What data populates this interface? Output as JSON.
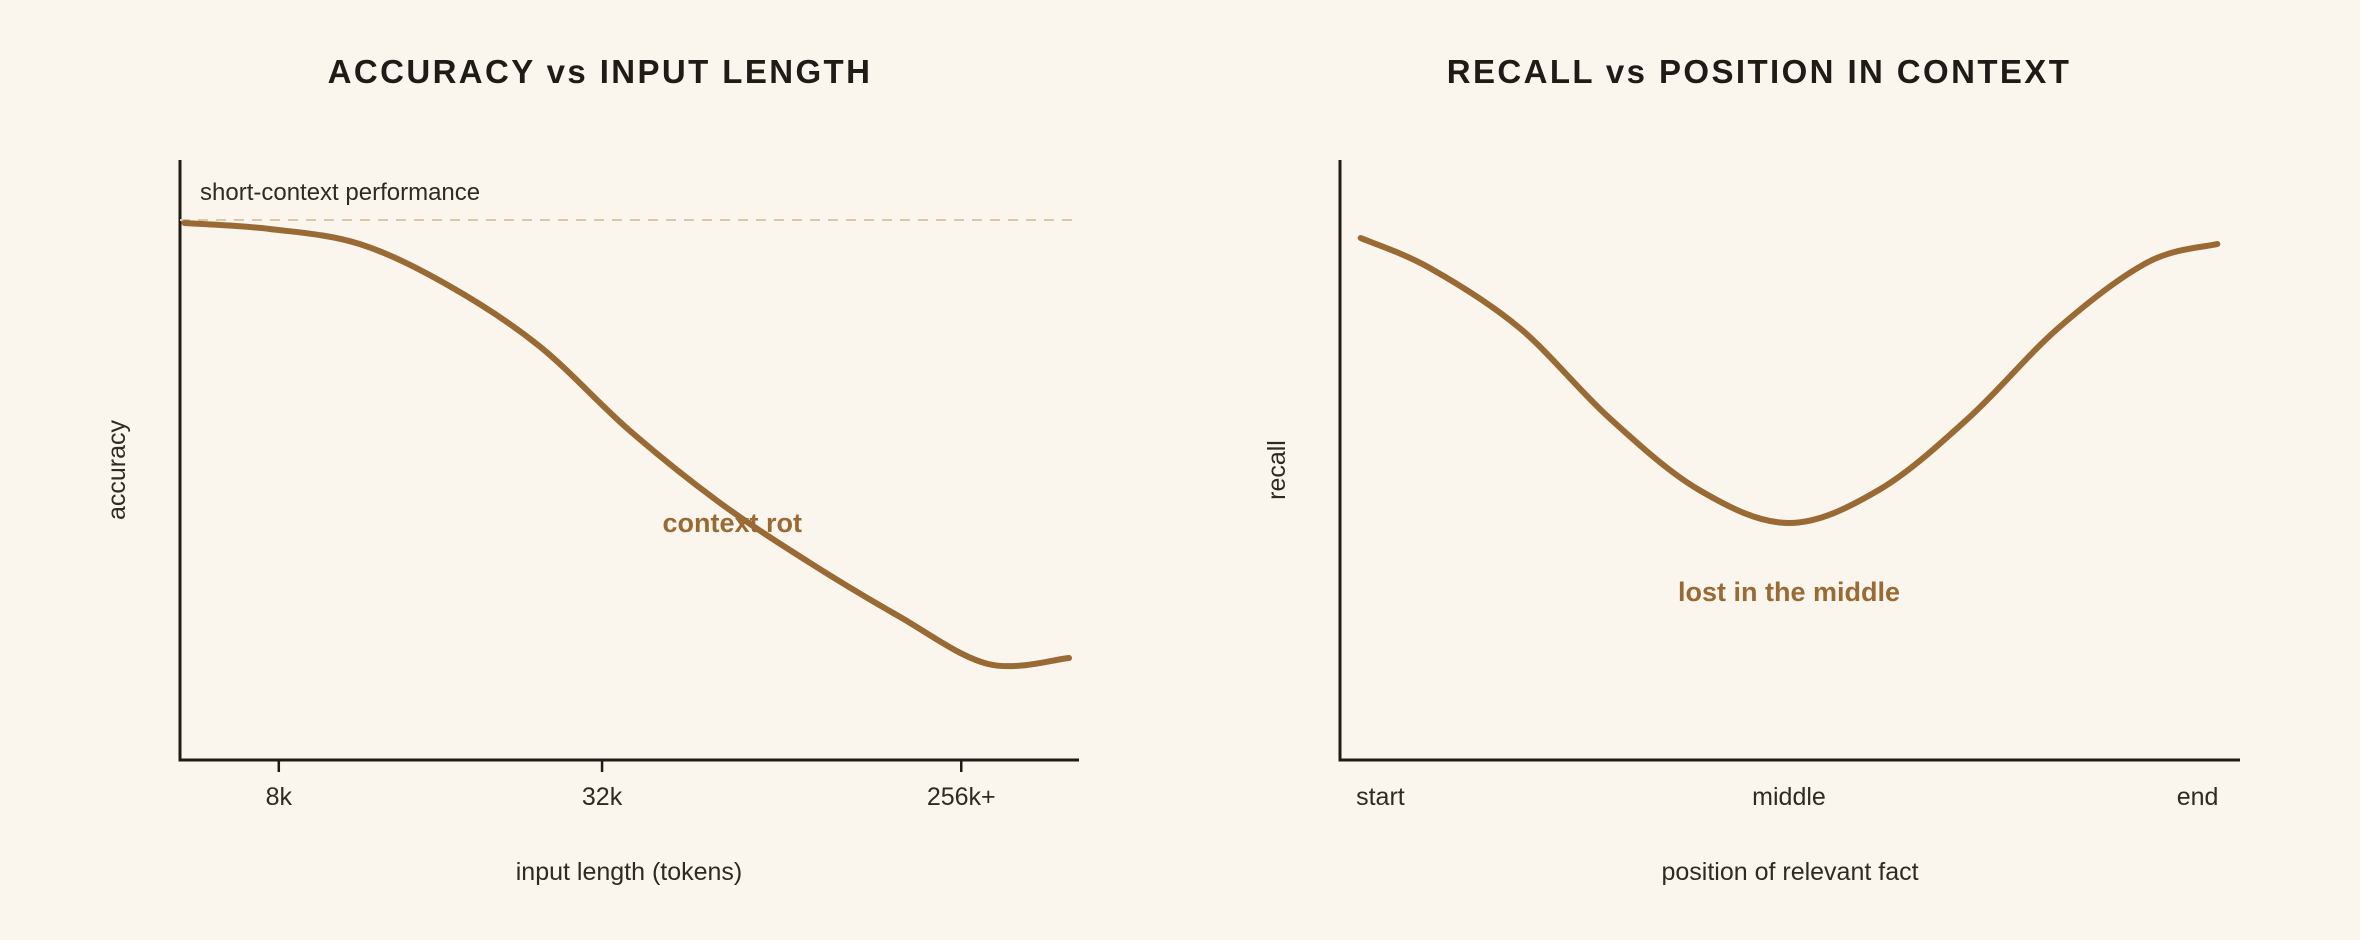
{
  "colors": {
    "background": "#faf6ee",
    "curve": "#9a6a35",
    "axis": "#1f1b16",
    "text": "#2e2a24",
    "reference_line": "#dcc7a8"
  },
  "chart_data": [
    {
      "type": "line",
      "title": "ACCURACY vs INPUT LENGTH",
      "xlabel": "input length (tokens)",
      "ylabel": "accuracy",
      "x_ticks": [
        {
          "label": "8k",
          "x": 0.11
        },
        {
          "label": "32k",
          "x": 0.47
        },
        {
          "label": "256k+",
          "x": 0.87
        }
      ],
      "xlim": [
        0,
        1
      ],
      "ylim": [
        0,
        1
      ],
      "reference_line": {
        "label": "short-context performance",
        "y": 0.9,
        "style": "dashed"
      },
      "annotation": {
        "text": "context rot",
        "x": 0.615,
        "y": 0.38
      },
      "series": [
        {
          "x": [
            0.005,
            0.1,
            0.2,
            0.3,
            0.4,
            0.5,
            0.6,
            0.7,
            0.8,
            0.9,
            0.99
          ],
          "values": [
            0.895,
            0.885,
            0.86,
            0.79,
            0.69,
            0.55,
            0.43,
            0.33,
            0.24,
            0.16,
            0.17
          ]
        }
      ]
    },
    {
      "type": "line",
      "title": "RECALL vs POSITION IN CONTEXT",
      "xlabel": "position of relevant fact",
      "ylabel": "recall",
      "x_ticks": [
        {
          "label": "start",
          "x": 0.045
        },
        {
          "label": "middle",
          "x": 0.5
        },
        {
          "label": "end",
          "x": 0.955
        }
      ],
      "xlim": [
        0,
        1
      ],
      "ylim": [
        0,
        1
      ],
      "annotation": {
        "text": "lost in the middle",
        "x": 0.5,
        "y": 0.265
      },
      "series": [
        {
          "x": [
            0.023,
            0.1,
            0.2,
            0.3,
            0.4,
            0.5,
            0.6,
            0.7,
            0.8,
            0.9,
            0.977
          ],
          "values": [
            0.87,
            0.82,
            0.72,
            0.57,
            0.45,
            0.395,
            0.45,
            0.57,
            0.72,
            0.83,
            0.86
          ]
        }
      ]
    }
  ]
}
